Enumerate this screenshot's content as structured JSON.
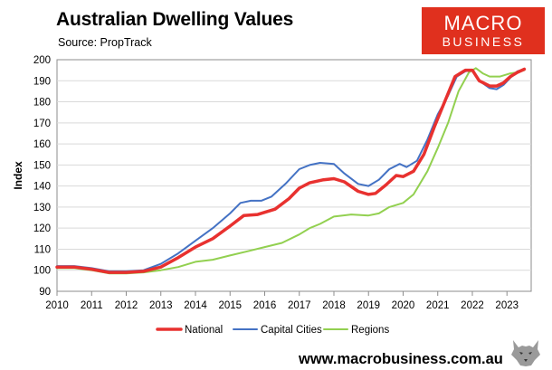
{
  "chart_data": {
    "type": "line",
    "title": "Australian Dwelling Values",
    "subtitle": "Source: PropTrack",
    "xlabel": "",
    "ylabel": "Index",
    "xlim": [
      2010,
      2023.7
    ],
    "ylim": [
      90,
      200
    ],
    "yticks": [
      90,
      100,
      110,
      120,
      130,
      140,
      150,
      160,
      170,
      180,
      190,
      200
    ],
    "xticks": [
      2010,
      2011,
      2012,
      2013,
      2014,
      2015,
      2016,
      2017,
      2018,
      2019,
      2020,
      2021,
      2022,
      2023
    ],
    "legend_position": "bottom",
    "series": [
      {
        "name": "National",
        "color": "#e8312f",
        "width": 3.5,
        "points": [
          [
            2010,
            101.5
          ],
          [
            2010.5,
            101.5
          ],
          [
            2011,
            100.5
          ],
          [
            2011.5,
            99
          ],
          [
            2012,
            99
          ],
          [
            2012.5,
            99.5
          ],
          [
            2013,
            101.5
          ],
          [
            2013.5,
            106
          ],
          [
            2014,
            111
          ],
          [
            2014.5,
            115
          ],
          [
            2015,
            121
          ],
          [
            2015.4,
            126
          ],
          [
            2015.8,
            126.5
          ],
          [
            2016,
            127.5
          ],
          [
            2016.3,
            129
          ],
          [
            2016.7,
            134
          ],
          [
            2017,
            139
          ],
          [
            2017.3,
            141.5
          ],
          [
            2017.7,
            143
          ],
          [
            2018,
            143.5
          ],
          [
            2018.3,
            142
          ],
          [
            2018.7,
            137.5
          ],
          [
            2019,
            136
          ],
          [
            2019.2,
            136.5
          ],
          [
            2019.5,
            140.5
          ],
          [
            2019.8,
            145
          ],
          [
            2020,
            144.5
          ],
          [
            2020.3,
            147
          ],
          [
            2020.6,
            155
          ],
          [
            2020.9,
            168
          ],
          [
            2021.2,
            180
          ],
          [
            2021.5,
            192
          ],
          [
            2021.8,
            195
          ],
          [
            2022,
            195
          ],
          [
            2022.2,
            190
          ],
          [
            2022.5,
            187.5
          ],
          [
            2022.7,
            187.5
          ],
          [
            2022.9,
            189
          ],
          [
            2023.1,
            192
          ],
          [
            2023.3,
            194
          ],
          [
            2023.5,
            195.5
          ]
        ]
      },
      {
        "name": "Capital Cities",
        "color": "#4472c4",
        "width": 2,
        "points": [
          [
            2010,
            102
          ],
          [
            2010.5,
            102
          ],
          [
            2011,
            101
          ],
          [
            2011.5,
            99.5
          ],
          [
            2012,
            99.5
          ],
          [
            2012.5,
            100
          ],
          [
            2013,
            103
          ],
          [
            2013.5,
            108
          ],
          [
            2014,
            114
          ],
          [
            2014.5,
            120
          ],
          [
            2015,
            127
          ],
          [
            2015.3,
            132
          ],
          [
            2015.6,
            133
          ],
          [
            2015.9,
            133
          ],
          [
            2016.2,
            135
          ],
          [
            2016.6,
            141
          ],
          [
            2017,
            148
          ],
          [
            2017.3,
            150
          ],
          [
            2017.6,
            151
          ],
          [
            2018,
            150.5
          ],
          [
            2018.3,
            146
          ],
          [
            2018.7,
            141
          ],
          [
            2019,
            140
          ],
          [
            2019.3,
            143
          ],
          [
            2019.6,
            148
          ],
          [
            2019.9,
            150.5
          ],
          [
            2020.1,
            149
          ],
          [
            2020.4,
            152
          ],
          [
            2020.7,
            162
          ],
          [
            2021,
            174
          ],
          [
            2021.3,
            183
          ],
          [
            2021.55,
            192
          ],
          [
            2021.8,
            194.5
          ],
          [
            2022,
            195
          ],
          [
            2022.2,
            190
          ],
          [
            2022.5,
            186.5
          ],
          [
            2022.7,
            186
          ],
          [
            2022.9,
            188
          ],
          [
            2023.1,
            191.5
          ],
          [
            2023.3,
            194.5
          ],
          [
            2023.5,
            195.5
          ]
        ]
      },
      {
        "name": "Regions",
        "color": "#92d050",
        "width": 2,
        "points": [
          [
            2010,
            101
          ],
          [
            2010.5,
            101
          ],
          [
            2011,
            100
          ],
          [
            2011.5,
            98.5
          ],
          [
            2012,
            98.5
          ],
          [
            2012.5,
            99
          ],
          [
            2013,
            100
          ],
          [
            2013.5,
            101.5
          ],
          [
            2014,
            104
          ],
          [
            2014.5,
            105
          ],
          [
            2015,
            107
          ],
          [
            2015.5,
            109
          ],
          [
            2016,
            111
          ],
          [
            2016.5,
            113
          ],
          [
            2017,
            117
          ],
          [
            2017.3,
            120
          ],
          [
            2017.6,
            122
          ],
          [
            2018,
            125.5
          ],
          [
            2018.5,
            126.5
          ],
          [
            2019,
            126
          ],
          [
            2019.3,
            127
          ],
          [
            2019.6,
            130
          ],
          [
            2020,
            132
          ],
          [
            2020.3,
            136
          ],
          [
            2020.7,
            147
          ],
          [
            2021,
            158
          ],
          [
            2021.3,
            170
          ],
          [
            2021.6,
            185
          ],
          [
            2021.9,
            194
          ],
          [
            2022.1,
            196
          ],
          [
            2022.3,
            193.5
          ],
          [
            2022.5,
            192
          ],
          [
            2022.8,
            192
          ],
          [
            2023.1,
            193.5
          ],
          [
            2023.3,
            194
          ],
          [
            2023.5,
            195
          ]
        ]
      }
    ]
  },
  "branding": {
    "logo_line1": "MACRO",
    "logo_line2": "BUSINESS",
    "logo_color": "#e0301e",
    "website": "www.macrobusiness.com.au"
  }
}
